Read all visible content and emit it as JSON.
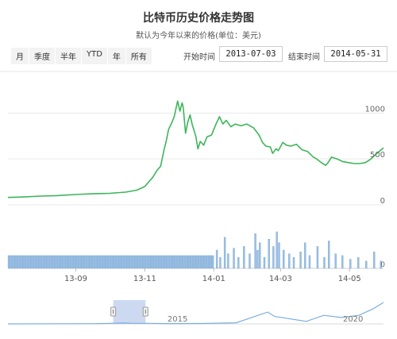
{
  "header": {
    "title": "比特币历史价格走势图",
    "subtitle": "默认为今年以来的价格(单位：美元)"
  },
  "range_buttons": [
    "月",
    "季度",
    "半年",
    "YTD",
    "年",
    "所有"
  ],
  "date_range": {
    "start_label": "开始时间",
    "start_value": "2013-07-03",
    "end_label": "结束时间",
    "end_value": "2014-05-31"
  },
  "colors": {
    "price_line": "#3cb55a",
    "volume_fill": "#9cc0e4",
    "volume_stroke": "#7aa6d2",
    "navigator_line": "#7aaee0",
    "navigator_mask": "#c3d2ef"
  },
  "chart_data": {
    "type": "line",
    "title": "比特币历史价格走势图",
    "subtitle": "默认为今年以来的价格(单位：美元)",
    "ylim": [
      0,
      1150
    ],
    "yticks": [
      0,
      500,
      1000
    ],
    "xticks": [
      "13-09",
      "13-11",
      "14-01",
      "14-03",
      "14-05"
    ],
    "xtick_dates": [
      "2013-09-01",
      "2013-11-01",
      "2014-01-01",
      "2014-03-01",
      "2014-05-01"
    ],
    "x_range": [
      "2013-07-03",
      "2014-05-31"
    ],
    "grid": true,
    "price": [
      [
        "2013-07-03",
        80
      ],
      [
        "2013-07-15",
        85
      ],
      [
        "2013-08-01",
        95
      ],
      [
        "2013-08-15",
        100
      ],
      [
        "2013-09-01",
        112
      ],
      [
        "2013-09-15",
        120
      ],
      [
        "2013-10-01",
        125
      ],
      [
        "2013-10-15",
        138
      ],
      [
        "2013-10-25",
        160
      ],
      [
        "2013-11-01",
        200
      ],
      [
        "2013-11-08",
        300
      ],
      [
        "2013-11-12",
        380
      ],
      [
        "2013-11-15",
        420
      ],
      [
        "2013-11-18",
        600
      ],
      [
        "2013-11-20",
        700
      ],
      [
        "2013-11-22",
        820
      ],
      [
        "2013-11-25",
        900
      ],
      [
        "2013-11-27",
        960
      ],
      [
        "2013-11-30",
        1130
      ],
      [
        "2013-12-02",
        1020
      ],
      [
        "2013-12-04",
        1110
      ],
      [
        "2013-12-05",
        1060
      ],
      [
        "2013-12-07",
        780
      ],
      [
        "2013-12-09",
        900
      ],
      [
        "2013-12-11",
        980
      ],
      [
        "2013-12-13",
        870
      ],
      [
        "2013-12-16",
        750
      ],
      [
        "2013-12-18",
        610
      ],
      [
        "2013-12-20",
        690
      ],
      [
        "2013-12-23",
        650
      ],
      [
        "2013-12-26",
        740
      ],
      [
        "2013-12-30",
        760
      ],
      [
        "2014-01-03",
        880
      ],
      [
        "2014-01-06",
        960
      ],
      [
        "2014-01-09",
        880
      ],
      [
        "2014-01-12",
        920
      ],
      [
        "2014-01-16",
        850
      ],
      [
        "2014-01-20",
        880
      ],
      [
        "2014-01-25",
        860
      ],
      [
        "2014-01-30",
        880
      ],
      [
        "2014-02-05",
        840
      ],
      [
        "2014-02-10",
        760
      ],
      [
        "2014-02-13",
        680
      ],
      [
        "2014-02-16",
        640
      ],
      [
        "2014-02-20",
        630
      ],
      [
        "2014-02-22",
        560
      ],
      [
        "2014-02-25",
        610
      ],
      [
        "2014-02-27",
        590
      ],
      [
        "2014-03-03",
        680
      ],
      [
        "2014-03-06",
        650
      ],
      [
        "2014-03-10",
        640
      ],
      [
        "2014-03-15",
        660
      ],
      [
        "2014-03-20",
        600
      ],
      [
        "2014-03-25",
        580
      ],
      [
        "2014-03-30",
        520
      ],
      [
        "2014-04-02",
        500
      ],
      [
        "2014-04-06",
        460
      ],
      [
        "2014-04-10",
        430
      ],
      [
        "2014-04-12",
        460
      ],
      [
        "2014-04-15",
        520
      ],
      [
        "2014-04-20",
        500
      ],
      [
        "2014-04-25",
        470
      ],
      [
        "2014-04-30",
        460
      ],
      [
        "2014-05-05",
        450
      ],
      [
        "2014-05-10",
        450
      ],
      [
        "2014-05-15",
        460
      ],
      [
        "2014-05-20",
        500
      ],
      [
        "2014-05-25",
        560
      ],
      [
        "2014-05-31",
        620
      ]
    ],
    "volume": {
      "yticks": [
        0
      ],
      "base_start": "2013-07-03",
      "base_end": "2014-01-01",
      "base_level": 0.35,
      "spikes": [
        [
          "2014-01-03",
          0.5
        ],
        [
          "2014-01-06",
          0.3
        ],
        [
          "2014-01-10",
          0.85
        ],
        [
          "2014-01-13",
          0.4
        ],
        [
          "2014-01-18",
          0.55
        ],
        [
          "2014-01-22",
          0.3
        ],
        [
          "2014-01-27",
          0.6
        ],
        [
          "2014-02-01",
          0.4
        ],
        [
          "2014-02-06",
          0.95
        ],
        [
          "2014-02-08",
          0.5
        ],
        [
          "2014-02-10",
          0.7
        ],
        [
          "2014-02-14",
          0.3
        ],
        [
          "2014-02-18",
          0.8
        ],
        [
          "2014-02-22",
          0.6
        ],
        [
          "2014-02-25",
          1.0
        ],
        [
          "2014-02-27",
          0.7
        ],
        [
          "2014-03-03",
          0.5
        ],
        [
          "2014-03-08",
          0.4
        ],
        [
          "2014-03-12",
          0.3
        ],
        [
          "2014-03-18",
          0.45
        ],
        [
          "2014-03-22",
          0.7
        ],
        [
          "2014-03-26",
          0.35
        ],
        [
          "2014-04-02",
          0.6
        ],
        [
          "2014-04-08",
          0.3
        ],
        [
          "2014-04-12",
          0.75
        ],
        [
          "2014-04-18",
          0.4
        ],
        [
          "2014-04-24",
          0.35
        ],
        [
          "2014-05-01",
          0.25
        ],
        [
          "2014-05-08",
          0.3
        ],
        [
          "2014-05-15",
          0.2
        ],
        [
          "2014-05-22",
          0.45
        ],
        [
          "2014-05-28",
          0.2
        ]
      ]
    },
    "navigator": {
      "labels": [
        "2015",
        "2020"
      ],
      "label_years": [
        2015,
        2020
      ],
      "year_range": [
        2010.5,
        2021.2
      ],
      "selection_years": [
        2013.5,
        2014.42
      ],
      "series": [
        [
          2010.5,
          0
        ],
        [
          2013.0,
          0.01
        ],
        [
          2013.8,
          0.04
        ],
        [
          2014.0,
          0.03
        ],
        [
          2014.5,
          0.025
        ],
        [
          2015.0,
          0.015
        ],
        [
          2016.0,
          0.02
        ],
        [
          2017.0,
          0.05
        ],
        [
          2017.9,
          0.55
        ],
        [
          2018.1,
          0.35
        ],
        [
          2018.5,
          0.25
        ],
        [
          2019.0,
          0.12
        ],
        [
          2019.5,
          0.4
        ],
        [
          2020.0,
          0.3
        ],
        [
          2020.5,
          0.4
        ],
        [
          2020.9,
          0.7
        ],
        [
          2021.2,
          1.0
        ]
      ]
    }
  }
}
